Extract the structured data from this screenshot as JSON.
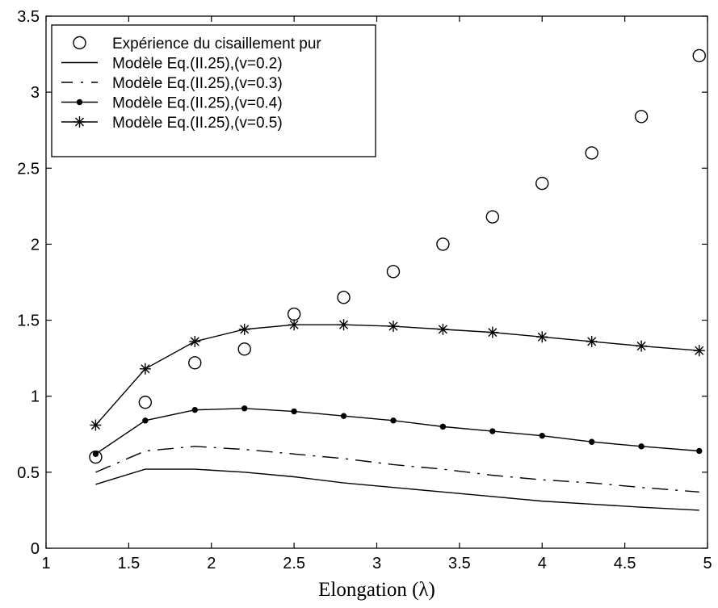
{
  "chart_data": {
    "type": "line",
    "title": "",
    "xlabel": "Elongation (λ)",
    "ylabel": "",
    "xlim": [
      1,
      5
    ],
    "ylim": [
      0,
      3.5
    ],
    "grid": false,
    "legend_position": "top-left",
    "x_ticks": [
      "1",
      "1.5",
      "2",
      "2.5",
      "3",
      "3.5",
      "4",
      "4.5",
      "5"
    ],
    "y_ticks": [
      "0",
      "0.5",
      "1",
      "1.5",
      "2",
      "2.5",
      "3",
      "3.5"
    ],
    "x_tick_values": [
      1,
      1.5,
      2,
      2.5,
      3,
      3.5,
      4,
      4.5,
      5
    ],
    "y_tick_values": [
      0,
      0.5,
      1,
      1.5,
      2,
      2.5,
      3,
      3.5
    ],
    "x": [
      1.3,
      1.6,
      1.9,
      2.2,
      2.5,
      2.8,
      3.1,
      3.4,
      3.7,
      4.0,
      4.3,
      4.6,
      4.95
    ],
    "series": [
      {
        "name": "Expérience du cisaillement pur",
        "marker": "circle",
        "line": "none",
        "values": [
          0.6,
          0.96,
          1.22,
          1.31,
          1.54,
          1.65,
          1.82,
          2.0,
          2.18,
          2.4,
          2.6,
          2.84,
          3.24
        ]
      },
      {
        "name": "Modèle Eq.(II.25),(v=0.2)",
        "marker": "none",
        "line": "solid",
        "values": [
          0.42,
          0.52,
          0.52,
          0.5,
          0.47,
          0.43,
          0.4,
          0.37,
          0.34,
          0.31,
          0.29,
          0.27,
          0.25
        ]
      },
      {
        "name": "Modèle Eq.(II.25),(v=0.3)",
        "marker": "none",
        "line": "dashdot",
        "values": [
          0.5,
          0.64,
          0.67,
          0.65,
          0.62,
          0.59,
          0.55,
          0.52,
          0.48,
          0.45,
          0.43,
          0.4,
          0.37
        ]
      },
      {
        "name": "Modèle Eq.(II.25),(v=0.4)",
        "marker": "dot",
        "line": "solid",
        "values": [
          0.62,
          0.84,
          0.91,
          0.92,
          0.9,
          0.87,
          0.84,
          0.8,
          0.77,
          0.74,
          0.7,
          0.67,
          0.64
        ]
      },
      {
        "name": "Modèle Eq.(II.25),(v=0.5)",
        "marker": "star",
        "line": "solid",
        "values": [
          0.81,
          1.18,
          1.36,
          1.44,
          1.47,
          1.47,
          1.46,
          1.44,
          1.42,
          1.39,
          1.36,
          1.33,
          1.3
        ]
      }
    ]
  }
}
